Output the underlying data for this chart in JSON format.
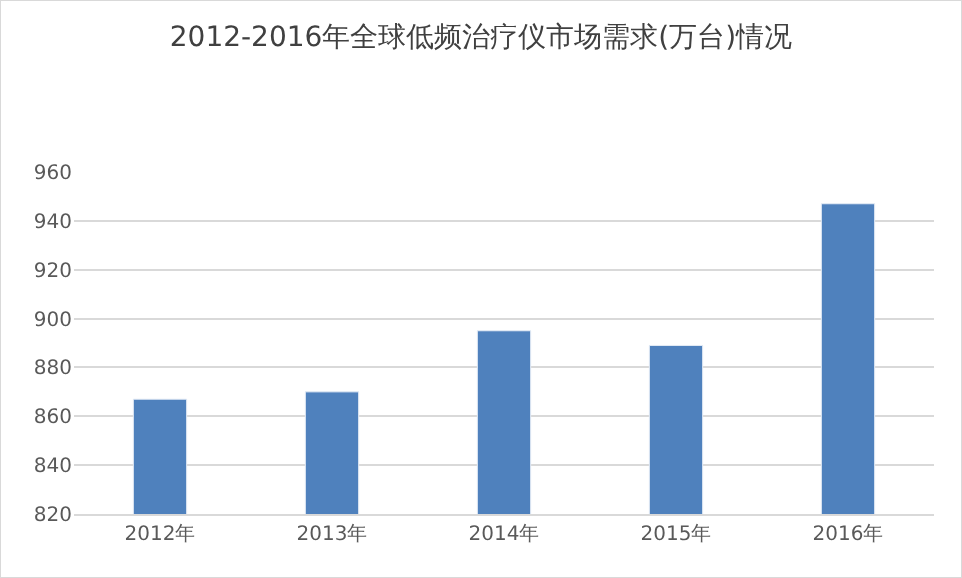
{
  "chart_data": {
    "type": "bar",
    "title": "2012-2016年全球低频治疗仪市场需求(万台)情况",
    "categories": [
      "2012年",
      "2013年",
      "2014年",
      "2015年",
      "2016年"
    ],
    "values": [
      867,
      870,
      895,
      889,
      947
    ],
    "color": "#4f81bd",
    "ylim": [
      820,
      960
    ],
    "yticks": [
      820,
      840,
      860,
      880,
      900,
      920,
      940,
      960
    ],
    "grid": "y",
    "legend": false
  }
}
